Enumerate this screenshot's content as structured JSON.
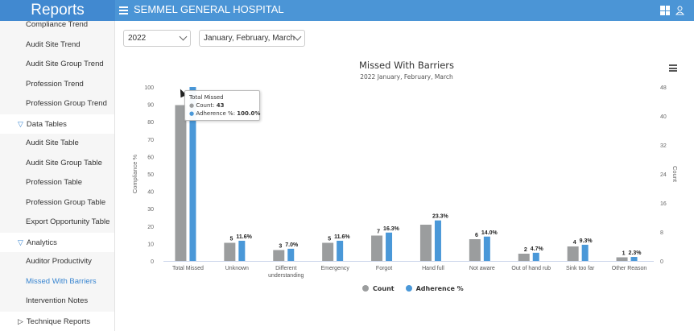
{
  "header": {
    "brand": "Reports",
    "hospital": "SEMMEL GENERAL HOSPITAL",
    "icons": [
      "menu-icon",
      "grid-icon",
      "user-icon"
    ]
  },
  "sidebar": {
    "items": [
      {
        "label": "Compliance Trend",
        "type": "item"
      },
      {
        "label": "Audit Site Trend",
        "type": "item"
      },
      {
        "label": "Audit Site Group Trend",
        "type": "item"
      },
      {
        "label": "Profession Trend",
        "type": "item"
      },
      {
        "label": "Profession Group Trend",
        "type": "item"
      },
      {
        "label": "Data Tables",
        "type": "section",
        "expanded": true
      },
      {
        "label": "Audit Site Table",
        "type": "item"
      },
      {
        "label": "Audit Site Group Table",
        "type": "item"
      },
      {
        "label": "Profession Table",
        "type": "item"
      },
      {
        "label": "Profession Group Table",
        "type": "item"
      },
      {
        "label": "Export Opportunity Table",
        "type": "item"
      },
      {
        "label": "Analytics",
        "type": "section",
        "expanded": true
      },
      {
        "label": "Auditor Productivity",
        "type": "item"
      },
      {
        "label": "Missed With Barriers",
        "type": "item",
        "active": true
      },
      {
        "label": "Intervention Notes",
        "type": "item"
      },
      {
        "label": "Technique Reports",
        "type": "section",
        "expanded": false
      }
    ]
  },
  "filters": {
    "year": "2022",
    "months": "January, February, March"
  },
  "tooltip": {
    "title": "Total Missed",
    "count_label": "Count: ",
    "count": "43",
    "adh_label": "Adherence %: ",
    "adh": "100.0%"
  },
  "colors": {
    "count": "#9b9d9e",
    "adherence": "#4a98d8",
    "accent": "#3a86d0"
  },
  "chart_data": {
    "type": "bar",
    "title": "Missed With Barriers",
    "subtitle": "2022 January, February, March",
    "categories": [
      "Total Missed",
      "Unknown",
      "Different understanding",
      "Emergency",
      "Forgot",
      "Hand full",
      "Not aware",
      "Out of hand rub",
      "Sink too far",
      "Other Reason"
    ],
    "series": [
      {
        "name": "Count",
        "axis": "right",
        "values": [
          43,
          5,
          3,
          5,
          7,
          10,
          6,
          2,
          4,
          1
        ],
        "labels": [
          "",
          "5",
          "3",
          "5",
          "7",
          "",
          "6",
          "2",
          "4",
          "1"
        ]
      },
      {
        "name": "Adherence %",
        "axis": "left",
        "values": [
          100.0,
          11.6,
          7.0,
          11.6,
          16.3,
          23.3,
          14.0,
          4.7,
          9.3,
          2.3
        ],
        "labels": [
          "",
          "11.6%",
          "7.0%",
          "11.6%",
          "16.3%",
          "23.3%",
          "14.0%",
          "4.7%",
          "9.3%",
          "2.3%"
        ]
      }
    ],
    "ylabel": "Compliance %",
    "ylim": [
      0,
      100
    ],
    "yticks": [
      0,
      10,
      20,
      30,
      40,
      50,
      60,
      70,
      80,
      90,
      100
    ],
    "y2label": "Count",
    "y2lim": [
      0,
      48
    ],
    "y2ticks": [
      0,
      8,
      16,
      24,
      32,
      40,
      48
    ],
    "legend": "bottom",
    "grid": false
  }
}
